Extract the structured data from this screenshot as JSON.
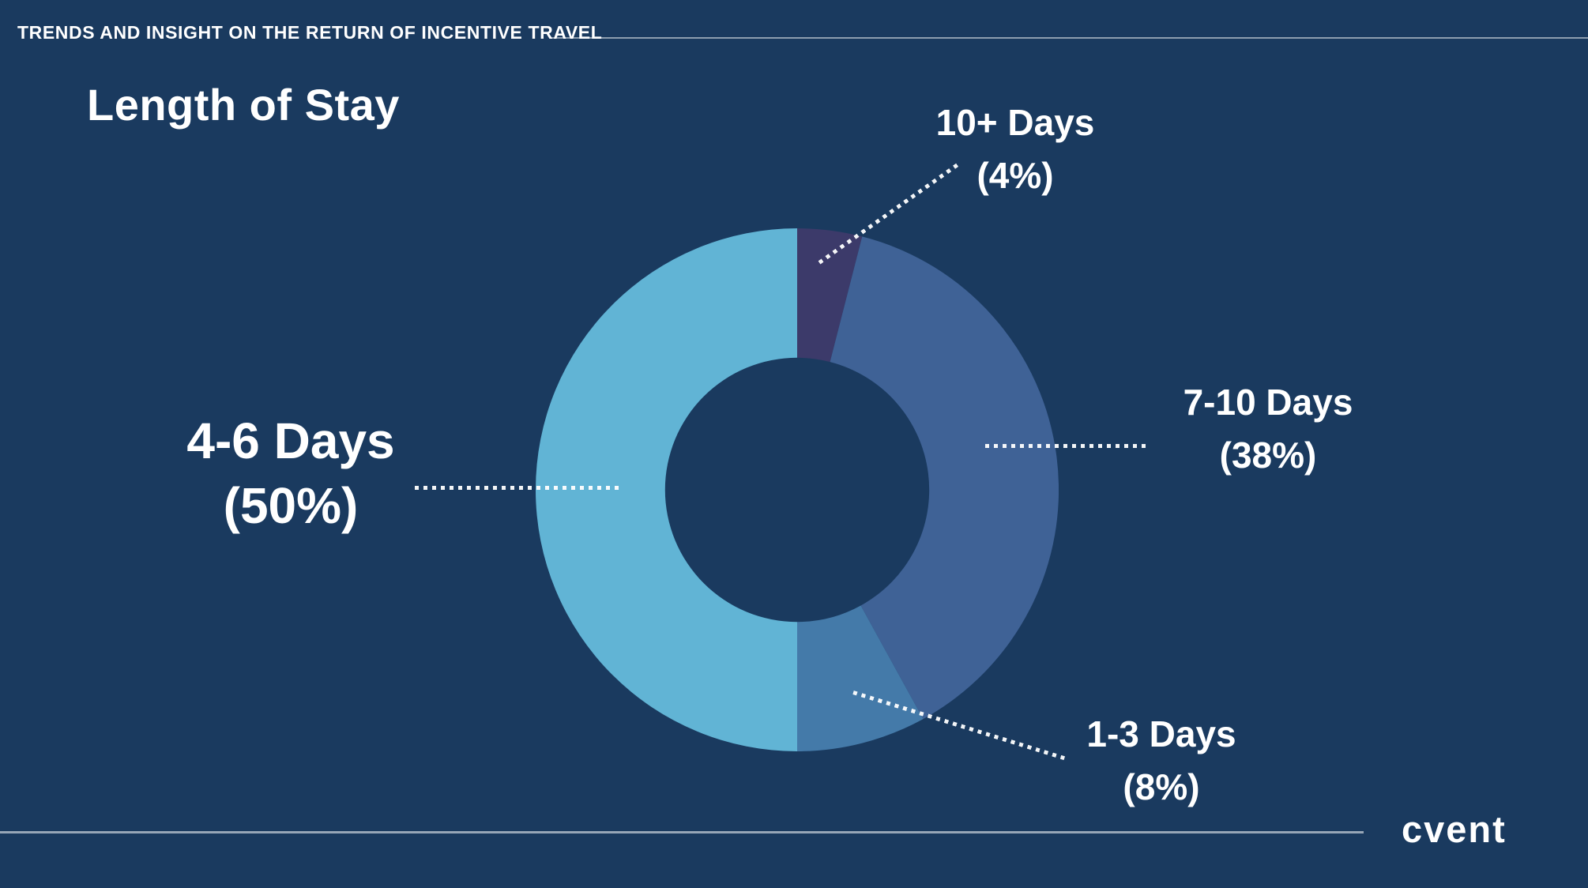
{
  "header": {
    "eyebrow": "TRENDS AND INSIGHT ON THE RETURN OF INCENTIVE TRAVEL"
  },
  "title": "Length of Stay",
  "footer": {
    "logo": "cvent"
  },
  "colors": {
    "background": "#1a3a5f",
    "text": "#ffffff",
    "rule": "rgba(255,255,255,0.5)"
  },
  "chart_data": {
    "type": "pie",
    "subtype": "donut",
    "title": "Length of Stay",
    "unit": "%",
    "start_angle_deg": 0,
    "direction": "clockwise",
    "inner_radius_ratio": 0.505,
    "legend_position": "callout-labels",
    "categories": [
      "10+ Days",
      "7-10 Days",
      "1-3 Days",
      "4-6 Days"
    ],
    "values": [
      4,
      38,
      8,
      50
    ],
    "slices": [
      {
        "label": "10+ Days",
        "value": 4,
        "display": "(4%)",
        "color": "#3c3a6a"
      },
      {
        "label": "7-10 Days",
        "value": 38,
        "display": "(38%)",
        "color": "#3f6296"
      },
      {
        "label": "1-3 Days",
        "value": 8,
        "display": "(8%)",
        "color": "#447aa9"
      },
      {
        "label": "4-6 Days",
        "value": 50,
        "display": "(50%)",
        "color": "#61b4d5"
      }
    ]
  }
}
